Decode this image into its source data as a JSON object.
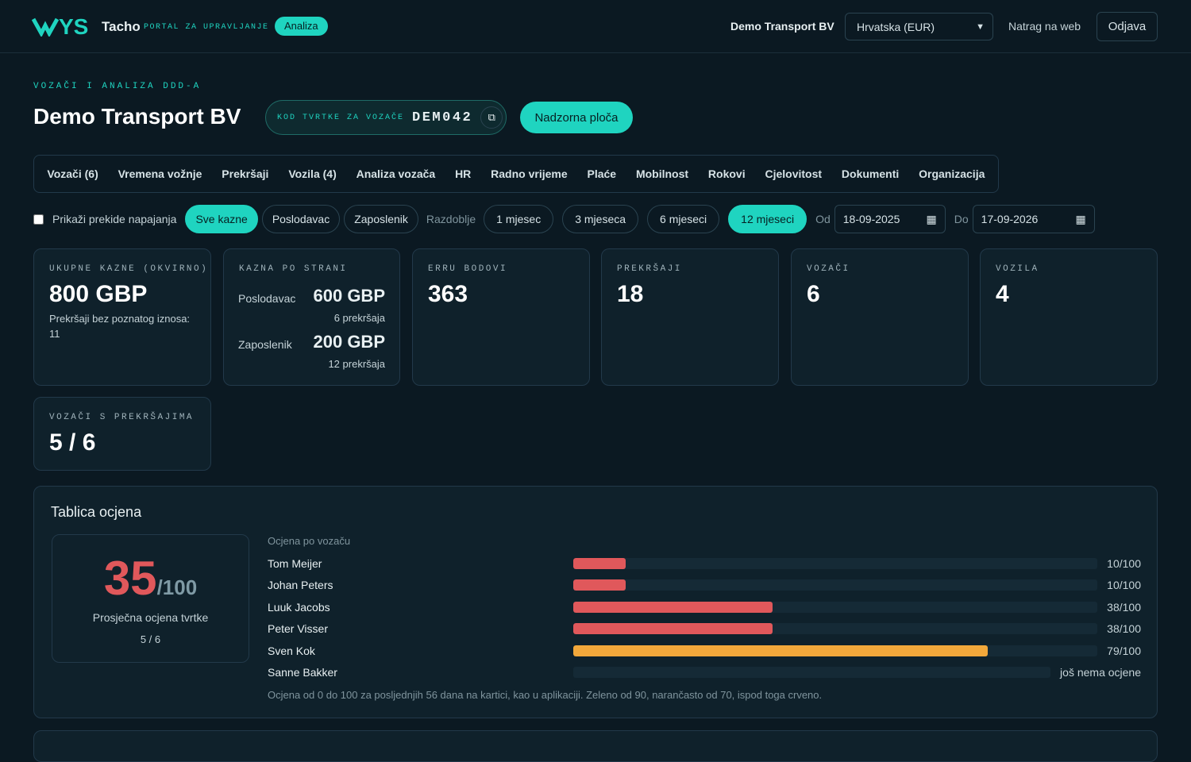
{
  "header": {
    "logo": "YS",
    "brand": "Tacho",
    "portal": "PORTAL ZA UPRAVLJANJE",
    "badge": "Analiza",
    "company": "Demo Transport BV",
    "region": "Hrvatska (EUR)",
    "back": "Natrag na web",
    "logout": "Odjava"
  },
  "page": {
    "eyebrow": "VOZAČI I ANALIZA DDD-A",
    "title": "Demo Transport BV",
    "code_label": "KOD TVRTKE ZA VOZAČE",
    "code": "DEM042",
    "dashboard": "Nadzorna ploča"
  },
  "tabs": [
    "Vozači (6)",
    "Vremena vožnje",
    "Prekršaji",
    "Vozila (4)",
    "Analiza vozača",
    "HR",
    "Radno vrijeme",
    "Plaće",
    "Mobilnost",
    "Rokovi",
    "Cjelovitost",
    "Dokumenti",
    "Organizacija"
  ],
  "filters": {
    "power": "Prikaži prekide napajanja",
    "fines": [
      "Sve kazne",
      "Poslodavac",
      "Zaposlenik"
    ],
    "period_label": "Razdoblje",
    "periods": [
      "1 mjesec",
      "3 mjeseca",
      "6 mjeseci",
      "12 mjeseci"
    ],
    "from_label": "Od",
    "from": "18-09-2025",
    "to_label": "Do",
    "to": "17-09-2026"
  },
  "cards": {
    "total": {
      "label": "UKUPNE KAZNE (OKVIRNO)",
      "value": "800 GBP",
      "note": "Prekršaji bez poznatog iznosa:",
      "note_value": 11
    },
    "by_side": {
      "label": "KAZNA PO STRANI",
      "rows": [
        {
          "name": "Poslodavac",
          "value": "600 GBP",
          "count": "6 prekršaja"
        },
        {
          "name": "Zaposlenik",
          "value": "200 GBP",
          "count": "12 prekršaja"
        }
      ]
    },
    "erru": {
      "label": "ERRU BODOVI",
      "value": 363
    },
    "violations": {
      "label": "PREKRŠAJI",
      "value": 18
    },
    "drivers": {
      "label": "VOZAČI",
      "value": 6
    },
    "vehicles": {
      "label": "VOZILA",
      "value": 4
    },
    "drivers_with": {
      "label": "VOZAČI S PREKRŠAJIMA",
      "value": "5 / 6"
    }
  },
  "scoreboard": {
    "title": "Tablica ocjena",
    "average": 35,
    "average_max": "/100",
    "score_max": 100,
    "average_label": "Prosječna ocjena tvrtke",
    "coverage": "5 / 6",
    "list_title": "Ocjena po vozaču",
    "drivers": [
      {
        "name": "Tom Meijer",
        "score": 10,
        "score_label": "10/100",
        "color": "#e0585b"
      },
      {
        "name": "Johan Peters",
        "score": 10,
        "score_label": "10/100",
        "color": "#e0585b"
      },
      {
        "name": "Luuk Jacobs",
        "score": 38,
        "score_label": "38/100",
        "color": "#e0585b"
      },
      {
        "name": "Peter Visser",
        "score": 38,
        "score_label": "38/100",
        "color": "#e0585b"
      },
      {
        "name": "Sven Kok",
        "score": 79,
        "score_label": "79/100",
        "color": "#f2a83b"
      },
      {
        "name": "Sanne Bakker",
        "score": null,
        "score_label": "još nema ocjene"
      }
    ],
    "footnote": "Ocjena od 0 do 100 za posljednjih 56 dana na kartici, kao u aplikaciji. Zeleno od 90, narančasto od 70, ispod toga crveno."
  }
}
